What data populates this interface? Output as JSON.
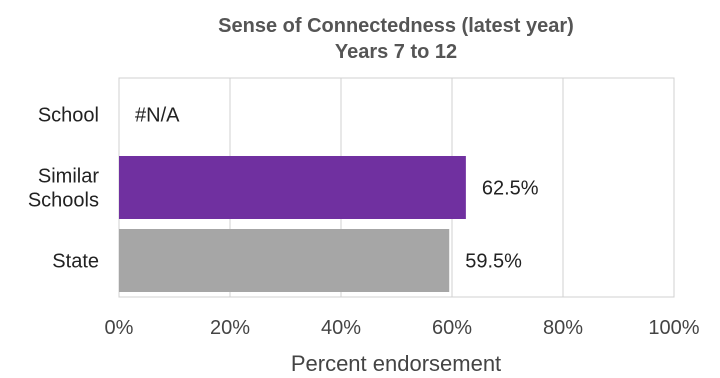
{
  "chart_data": {
    "type": "bar",
    "orientation": "horizontal",
    "title": "Sense of Connectedness (latest year)",
    "subtitle": "Years 7 to 12",
    "xlabel": "Percent endorsement",
    "ylabel": "",
    "xlim": [
      0,
      100
    ],
    "x_ticks": [
      "0%",
      "20%",
      "40%",
      "60%",
      "80%",
      "100%"
    ],
    "x_tick_values": [
      0,
      20,
      40,
      60,
      80,
      100
    ],
    "grid": true,
    "legend": "none",
    "categories": [
      {
        "lines": [
          "School"
        ]
      },
      {
        "lines": [
          "Similar",
          "Schools"
        ]
      },
      {
        "lines": [
          "State"
        ]
      }
    ],
    "values": [
      null,
      62.5,
      59.5
    ],
    "data_labels": [
      "#N/A",
      "62.5%",
      "59.5%"
    ],
    "colors": [
      "#7030a0",
      "#7030a0",
      "#a6a6a6"
    ]
  }
}
